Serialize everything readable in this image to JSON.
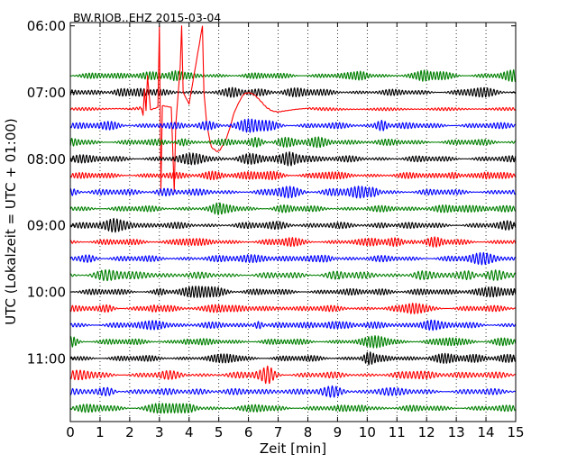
{
  "chart_data": {
    "type": "line",
    "title": "BW.RJOB..EHZ 2015-03-04",
    "xlabel": "Zeit  [min]",
    "ylabel": "UTC (Lokalzeit = UTC + 01:00)",
    "xlim": [
      0,
      15
    ],
    "x_ticks": [
      0,
      1,
      2,
      3,
      4,
      5,
      6,
      7,
      8,
      9,
      10,
      11,
      12,
      13,
      14,
      15
    ],
    "y_ticks": [
      {
        "label": "06:00",
        "hour": 6.0
      },
      {
        "label": "07:00",
        "hour": 7.0
      },
      {
        "label": "08:00",
        "hour": 8.0
      },
      {
        "label": "09:00",
        "hour": 9.0
      },
      {
        "label": "10:00",
        "hour": 10.0
      },
      {
        "label": "11:00",
        "hour": 11.0
      }
    ],
    "grid": "vertical dotted at each minute",
    "ylim_hours": [
      5.95,
      11.95
    ],
    "trace_color_cycle": [
      "#008000",
      "#000000",
      "#ff0000",
      "#0000ff"
    ],
    "trace_start_hours": [
      6.75,
      7.0,
      7.25,
      7.5,
      7.75,
      8.0,
      8.25,
      8.5,
      8.75,
      9.0,
      9.25,
      9.5,
      9.75,
      10.0,
      10.25,
      10.5,
      10.75,
      11.0,
      11.25,
      11.5,
      11.75
    ],
    "trace_colors": [
      "#008000",
      "#000000",
      "#ff0000",
      "#0000ff",
      "#008000",
      "#000000",
      "#ff0000",
      "#0000ff",
      "#008000",
      "#000000",
      "#ff0000",
      "#0000ff",
      "#008000",
      "#000000",
      "#ff0000",
      "#0000ff",
      "#008000",
      "#000000",
      "#ff0000",
      "#0000ff",
      "#008000"
    ],
    "event": {
      "trace_start_hour": 7.25,
      "color": "#ff0000",
      "samples": [
        [
          0.0,
          0.0
        ],
        [
          1.0,
          0.0
        ],
        [
          1.6,
          0.02
        ],
        [
          2.0,
          0.0
        ],
        [
          2.4,
          0.05
        ],
        [
          2.45,
          -0.4
        ],
        [
          2.5,
          1.2
        ],
        [
          2.55,
          -0.1
        ],
        [
          2.6,
          2.0
        ],
        [
          2.7,
          -0.05
        ],
        [
          2.95,
          0.1
        ],
        [
          3.0,
          5.0
        ],
        [
          3.05,
          -5.0
        ],
        [
          3.1,
          0.2
        ],
        [
          3.4,
          0.1
        ],
        [
          3.5,
          -5.0
        ],
        [
          3.55,
          -1.0
        ],
        [
          3.7,
          2.5
        ],
        [
          3.75,
          5.0
        ],
        [
          3.8,
          1.0
        ],
        [
          4.0,
          0.3
        ],
        [
          4.45,
          5.0
        ],
        [
          4.5,
          1.0
        ],
        [
          4.6,
          -1.0
        ],
        [
          4.75,
          -2.3
        ],
        [
          4.95,
          -2.57
        ],
        [
          5.05,
          -2.45
        ],
        [
          5.25,
          -1.8
        ],
        [
          5.4,
          -1.0
        ],
        [
          5.5,
          -0.3
        ],
        [
          5.65,
          0.3
        ],
        [
          5.8,
          0.8
        ],
        [
          5.9,
          0.95
        ],
        [
          6.05,
          0.98
        ],
        [
          6.2,
          0.85
        ],
        [
          6.4,
          0.5
        ],
        [
          6.6,
          0.1
        ],
        [
          6.8,
          -0.12
        ],
        [
          7.0,
          -0.18
        ],
        [
          7.2,
          -0.12
        ],
        [
          7.6,
          -0.02
        ],
        [
          8.0,
          0.04
        ],
        [
          8.4,
          0.0
        ],
        [
          9.0,
          -0.02
        ],
        [
          15.0,
          0.0
        ]
      ]
    }
  }
}
